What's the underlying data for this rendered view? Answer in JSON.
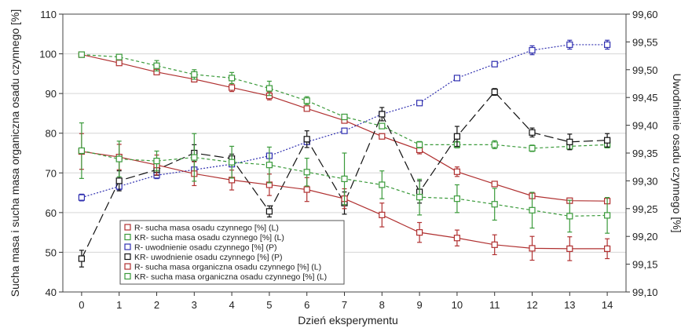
{
  "chart_data": {
    "type": "line",
    "xlabel": "Dzień eksperymentu",
    "ylabel_left": "Sucha masa i sucha masa organiczna osadu czynnego [%]",
    "ylabel_right": "Uwodnienie osadu czynnego [%]",
    "x": [
      0,
      1,
      2,
      3,
      4,
      5,
      6,
      7,
      8,
      9,
      10,
      11,
      12,
      13,
      14
    ],
    "x_ticks": [
      "0",
      "1",
      "2",
      "3",
      "4",
      "5",
      "6",
      "7",
      "8",
      "9",
      "10",
      "11",
      "12",
      "13",
      "14"
    ],
    "xlim": [
      -0.5,
      14.5
    ],
    "ylim_left": [
      40,
      110
    ],
    "ylim_right": [
      99.1,
      99.6
    ],
    "y_ticks_left": [
      "40",
      "50",
      "60",
      "70",
      "80",
      "90",
      "100",
      "110"
    ],
    "y_ticks_right": [
      "99,10",
      "99,15",
      "99,20",
      "99,25",
      "99,30",
      "99,35",
      "99,40",
      "99,45",
      "99,50",
      "99,55",
      "99,60"
    ],
    "grid": true,
    "legend_position": "bottom-left",
    "series": [
      {
        "name": "R- sucha masa osadu czynnego [%] (L)",
        "axis": "left",
        "color": "#b03030",
        "marker": "square",
        "dash": "solid",
        "values": [
          99.8,
          97.7,
          95.4,
          93.6,
          91.5,
          89.4,
          86.2,
          83.2,
          79.2,
          75.8,
          70.3,
          67.2,
          64.2,
          63.0,
          62.9
        ],
        "errors": [
          0,
          0.5,
          0.5,
          0.7,
          1.0,
          1.0,
          0.5,
          0.5,
          0.5,
          1.0,
          1.2,
          0.4,
          0.5,
          0.4,
          0.3
        ]
      },
      {
        "name": "KR- sucha masa osadu czynnego [%] (L)",
        "axis": "left",
        "color": "#3a9a3a",
        "marker": "square",
        "dash": "dashed",
        "values": [
          99.8,
          99.2,
          97.0,
          94.8,
          93.9,
          91.3,
          88.2,
          84.1,
          81.8,
          77.1,
          77.1,
          77.1,
          76.2,
          76.7,
          77.1
        ],
        "errors": [
          0,
          0.5,
          1.3,
          1.2,
          1.4,
          1.8,
          1.0,
          0.6,
          0.5,
          0.8,
          0.8,
          1.0,
          0.8,
          0.6,
          0.8
        ]
      },
      {
        "name": "R- uwodnienie osadu czynnego [%] (P)",
        "axis": "right",
        "color": "#3030b0",
        "marker": "square",
        "dash": "dotted",
        "values": [
          99.27,
          99.29,
          99.31,
          99.32,
          99.33,
          99.345,
          99.37,
          99.39,
          99.42,
          99.44,
          99.485,
          99.51,
          99.535,
          99.545,
          99.545
        ],
        "errors": [
          0.006,
          0.006,
          0.006,
          0.004,
          0.004,
          0.003,
          0.004,
          0.003,
          0.004,
          0.003,
          0.003,
          0.004,
          0.008,
          0.008,
          0.008
        ]
      },
      {
        "name": "KR- uwodnienie osadu czynnego [%] (P)",
        "axis": "right",
        "color": "#111111",
        "marker": "square",
        "dash": "longdash",
        "values": [
          99.16,
          99.3,
          99.32,
          99.35,
          99.34,
          99.245,
          99.375,
          99.26,
          99.42,
          99.28,
          99.38,
          99.46,
          99.387,
          99.37,
          99.373
        ],
        "errors": [
          0.015,
          0.018,
          0.01,
          0.015,
          0.008,
          0.01,
          0.015,
          0.02,
          0.012,
          0.02,
          0.018,
          0.006,
          0.008,
          0.014,
          0.012
        ]
      },
      {
        "name": "R- sucha masa organiczna osadu czynnego [%] (L)",
        "axis": "left",
        "color": "#b03030",
        "marker": "square",
        "dash": "solid",
        "values": [
          75.4,
          74.0,
          72.0,
          69.8,
          68.2,
          67.0,
          65.8,
          63.5,
          59.4,
          55.0,
          53.6,
          51.9,
          51.0,
          50.9,
          50.9
        ],
        "errors": [
          4.5,
          3.2,
          2.5,
          3.0,
          2.5,
          2.7,
          3.0,
          2.5,
          3.0,
          2.5,
          2.0,
          2.5,
          3.0,
          3.0,
          2.5
        ]
      },
      {
        "name": "KR- sucha masa organiczna osadu czynnego [%] (L)",
        "axis": "left",
        "color": "#3a9a3a",
        "marker": "square",
        "dash": "dashed",
        "values": [
          75.6,
          73.5,
          73.0,
          73.9,
          72.7,
          72.0,
          70.2,
          68.5,
          67.0,
          63.9,
          63.5,
          62.1,
          60.6,
          59.1,
          59.3
        ],
        "errors": [
          7.0,
          4.5,
          2.5,
          6.0,
          4.0,
          4.5,
          3.5,
          6.5,
          3.5,
          4.5,
          3.5,
          4.0,
          4.5,
          4.0,
          4.5
        ]
      }
    ]
  }
}
